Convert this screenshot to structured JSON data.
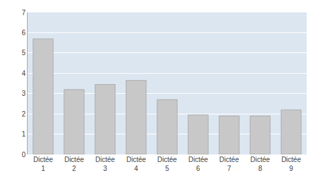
{
  "chart_data": {
    "type": "bar",
    "categories": [
      "Dictée\n1",
      "Dictée\n2",
      "Dictée\n3",
      "Dictée\n4",
      "Dictée\n5",
      "Dictée\n6",
      "Dictée\n7",
      "Dictée\n8",
      "Dictée\n9"
    ],
    "values": [
      5.7,
      3.2,
      3.45,
      3.65,
      2.7,
      1.95,
      1.9,
      1.9,
      2.2
    ],
    "color": "#c8c8c8",
    "ylim": [
      0,
      7
    ],
    "yticks": [
      0,
      1,
      2,
      3,
      4,
      5,
      6,
      7
    ],
    "grid": true
  }
}
